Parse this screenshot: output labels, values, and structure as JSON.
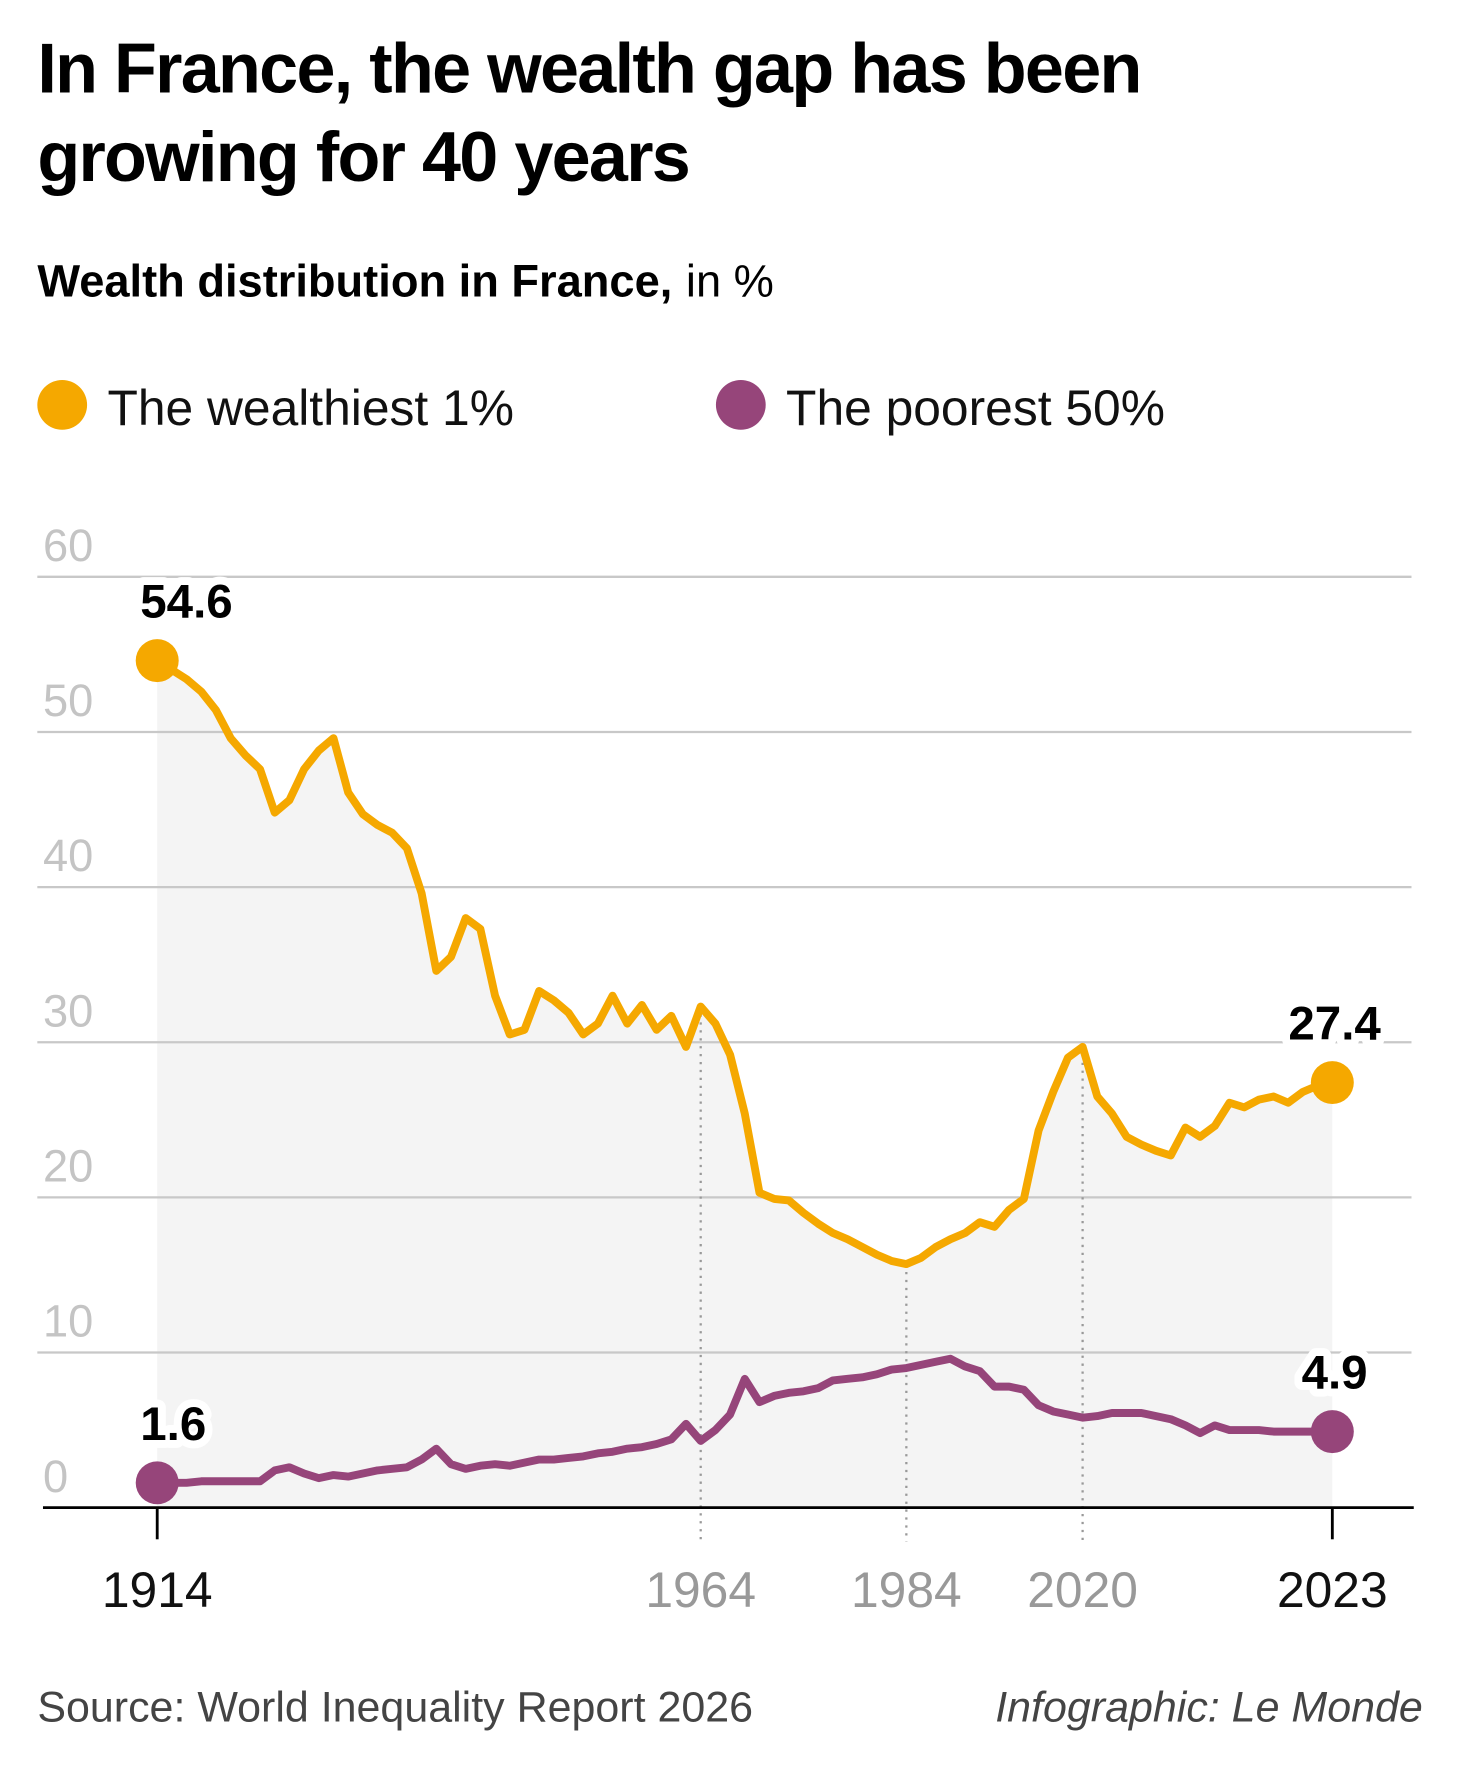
{
  "chart_data": {
    "type": "line",
    "title": "In France, the wealth gap has been growing for 40 years",
    "subtitle": "Wealth distribution in France,",
    "unit": "in %",
    "source": "Source: World Inequality Report 2026",
    "credit": "Infographic: Le Monde",
    "categories": [
      "1914",
      null,
      null,
      null,
      null,
      null,
      null,
      null,
      null,
      null,
      null,
      null,
      null,
      null,
      null,
      null,
      null,
      null,
      null,
      null,
      null,
      null,
      null,
      null,
      null,
      null,
      null,
      null,
      null,
      null,
      null,
      null,
      null,
      null,
      null,
      null,
      null,
      "1964",
      null,
      null,
      null,
      null,
      null,
      null,
      null,
      null,
      null,
      null,
      null,
      null,
      null,
      "1984",
      null,
      null,
      null,
      null,
      null,
      null,
      null,
      null,
      null,
      null,
      null,
      "2020",
      null,
      null,
      null,
      null,
      null,
      null,
      null,
      null,
      null,
      null,
      null,
      null,
      null,
      null,
      null,
      null,
      "2023"
    ],
    "series": [
      {
        "name": "The wealthiest 1%",
        "color": "#f5a800",
        "values": [
          54.6,
          54.0,
          53.4,
          52.6,
          51.4,
          49.6,
          48.5,
          47.6,
          44.8,
          45.6,
          47.6,
          48.8,
          49.6,
          46.1,
          44.7,
          44.0,
          43.5,
          42.5,
          39.6,
          34.6,
          35.5,
          38.0,
          37.3,
          33.0,
          30.5,
          30.8,
          33.3,
          32.7,
          31.9,
          30.5,
          31.2,
          33.0,
          31.2,
          32.4,
          30.8,
          31.7,
          29.7,
          32.3,
          31.2,
          29.2,
          25.4,
          20.3,
          19.9,
          19.8,
          19.0,
          18.3,
          17.7,
          17.3,
          16.8,
          16.3,
          15.9,
          15.7,
          16.1,
          16.8,
          17.3,
          17.7,
          18.4,
          18.1,
          19.2,
          19.9,
          24.3,
          26.8,
          29.0,
          29.7,
          26.5,
          25.4,
          23.9,
          23.4,
          23.0,
          22.7,
          24.5,
          23.9,
          24.6,
          26.1,
          25.8,
          26.3,
          26.5,
          26.1,
          26.8,
          27.2,
          27.4
        ]
      },
      {
        "name": "The poorest 50%",
        "color": "#96457a",
        "values": [
          1.6,
          1.6,
          1.6,
          1.7,
          1.7,
          1.7,
          1.7,
          1.7,
          2.4,
          2.6,
          2.2,
          1.9,
          2.1,
          2.0,
          2.2,
          2.4,
          2.5,
          2.6,
          3.1,
          3.8,
          2.8,
          2.5,
          2.7,
          2.8,
          2.7,
          2.9,
          3.1,
          3.1,
          3.2,
          3.3,
          3.5,
          3.6,
          3.8,
          3.9,
          4.1,
          4.4,
          5.4,
          4.3,
          5.0,
          6.0,
          8.3,
          6.8,
          7.2,
          7.4,
          7.5,
          7.7,
          8.2,
          8.3,
          8.4,
          8.6,
          8.9,
          9.0,
          9.2,
          9.4,
          9.6,
          9.1,
          8.8,
          7.8,
          7.8,
          7.6,
          6.6,
          6.2,
          6.0,
          5.8,
          5.9,
          6.1,
          6.1,
          6.1,
          5.9,
          5.7,
          5.3,
          4.8,
          5.3,
          5.0,
          5.0,
          5.0,
          4.9,
          4.9,
          4.9,
          4.9,
          4.9
        ]
      }
    ],
    "ylim": [
      0,
      60
    ],
    "yticks": [
      0,
      10,
      20,
      30,
      40,
      50,
      60
    ],
    "grid": true,
    "area_color": "#f4f4f4"
  }
}
